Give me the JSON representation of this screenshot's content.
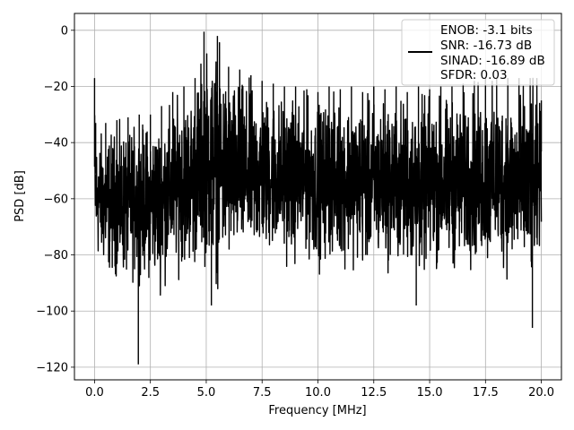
{
  "chart_data": {
    "type": "line",
    "title": "",
    "xlabel": "Frequency [MHz]",
    "ylabel": "PSD [dB]",
    "xlim": [
      -0.9,
      20.9
    ],
    "ylim": [
      -124.5,
      6
    ],
    "xticks": [
      0.0,
      2.5,
      5.0,
      7.5,
      10.0,
      12.5,
      15.0,
      17.5,
      20.0
    ],
    "xtick_labels": [
      "0.0",
      "2.5",
      "5.0",
      "7.5",
      "10.0",
      "12.5",
      "15.0",
      "17.5",
      "20.0"
    ],
    "yticks": [
      0,
      -20,
      -40,
      -60,
      -80,
      -100,
      -120
    ],
    "ytick_labels": [
      "0",
      "−20",
      "−40",
      "−60",
      "−80",
      "−100",
      "−120"
    ],
    "grid": true,
    "legend_position": "top-right",
    "legend_labels": [
      "ENOB: -3.1 bits",
      "SNR: -16.73 dB",
      "SINAD: -16.89 dB",
      "SFDR: 0.03"
    ],
    "series": [
      {
        "color": "#000000",
        "x": [
          0.0,
          0.05,
          0.5,
          1.0,
          1.5,
          2.0,
          2.5,
          3.0,
          3.5,
          4.0,
          4.5,
          4.9,
          5.5,
          6.0,
          6.5,
          7.0,
          7.5,
          8.0,
          8.5,
          9.0,
          9.5,
          10.0,
          10.5,
          11.0,
          11.5,
          12.0,
          12.5,
          13.0,
          13.5,
          14.0,
          14.5,
          15.0,
          15.5,
          16.0,
          16.5,
          17.0,
          17.5,
          18.0,
          18.5,
          19.0,
          19.5,
          19.8,
          20.0
        ],
        "y_max": [
          -17,
          -33,
          -33,
          -32,
          -31,
          -30,
          -30,
          -27,
          -22,
          -20,
          -17,
          -0.5,
          -2,
          -13,
          -14,
          -16,
          -18,
          -19,
          -20,
          -20,
          -21,
          -22,
          -20,
          -21,
          -20,
          -22,
          -20,
          -21,
          -20,
          -22,
          -20,
          -21,
          -20,
          -20,
          -19,
          -18,
          -17,
          -17,
          -17,
          -17,
          -17,
          -17,
          -25
        ],
        "y_min": [
          -81,
          -85,
          -90,
          -91,
          -93,
          -91,
          -92,
          -95,
          -90,
          -88,
          -89,
          -87,
          -94,
          -89,
          -88,
          -86,
          -85,
          -84,
          -85,
          -86,
          -84,
          -88,
          -85,
          -86,
          -86,
          -88,
          -89,
          -87,
          -89,
          -87,
          -93,
          -88,
          -89,
          -89,
          -88,
          -88,
          -89,
          -88,
          -91,
          -92,
          -96,
          -94,
          -72
        ],
        "deep_minima": [
          {
            "x": 1.96,
            "y": -119
          },
          {
            "x": 5.23,
            "y": -98
          },
          {
            "x": 14.4,
            "y": -98
          },
          {
            "x": 19.6,
            "y": -106
          }
        ]
      }
    ]
  }
}
